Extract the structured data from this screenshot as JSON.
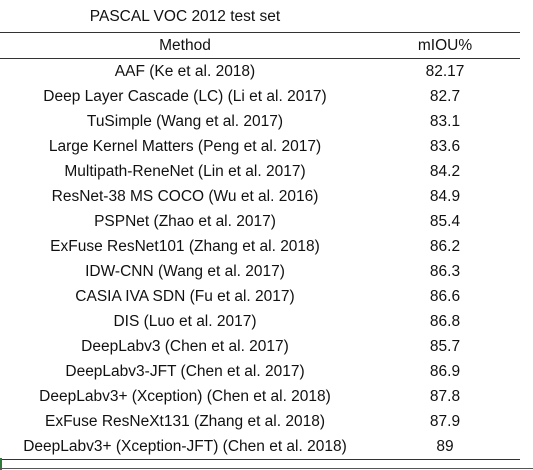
{
  "caption": "PASCAL VOC 2012 test set",
  "columns": {
    "method": "Method",
    "miou": "mIOU%"
  },
  "rows": [
    {
      "method": "AAF (Ke et al. 2018)",
      "miou": "82.17"
    },
    {
      "method": "Deep Layer Cascade (LC) (Li et al. 2017)",
      "miou": "82.7"
    },
    {
      "method": "TuSimple (Wang et al. 2017)",
      "miou": "83.1"
    },
    {
      "method": "Large Kernel Matters (Peng et al. 2017)",
      "miou": "83.6"
    },
    {
      "method": "Multipath-ReneNet (Lin et al. 2017)",
      "miou": "84.2"
    },
    {
      "method": "ResNet-38 MS COCO (Wu et al. 2016)",
      "miou": "84.9"
    },
    {
      "method": "PSPNet (Zhao et al. 2017)",
      "miou": "85.4"
    },
    {
      "method": "ExFuse ResNet101 (Zhang et al. 2018)",
      "miou": "86.2"
    },
    {
      "method": "IDW-CNN (Wang et al. 2017)",
      "miou": "86.3"
    },
    {
      "method": "CASIA IVA SDN (Fu et al. 2017)",
      "miou": "86.6"
    },
    {
      "method": "DIS (Luo et al. 2017)",
      "miou": "86.8"
    },
    {
      "method": "DeepLabv3 (Chen et al. 2017)",
      "miou": "85.7"
    },
    {
      "method": "DeepLabv3-JFT (Chen et al. 2017)",
      "miou": "86.9"
    },
    {
      "method": "DeepLabv3+ (Xception) (Chen et al. 2018)",
      "miou": "87.8"
    },
    {
      "method": "ExFuse ResNeXt131 (Zhang et al. 2018)",
      "miou": "87.9"
    },
    {
      "method": "DeepLabv3+ (Xception-JFT) (Chen et al. 2018)",
      "miou": "89"
    }
  ]
}
